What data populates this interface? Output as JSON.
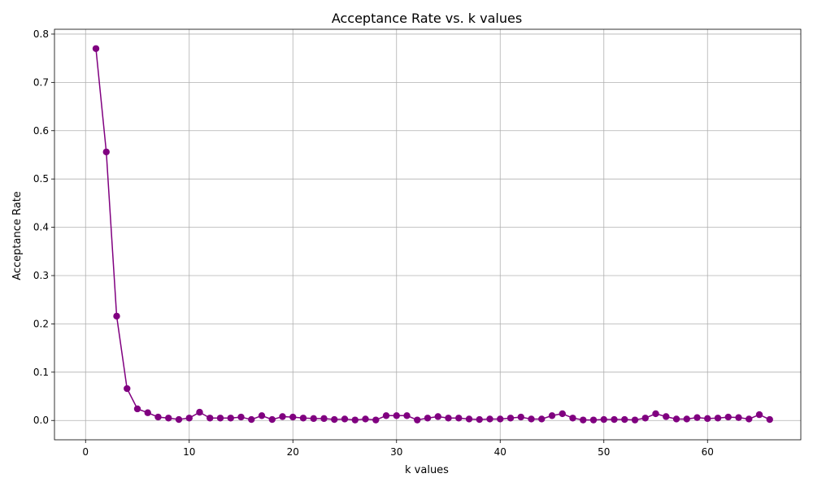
{
  "chart_data": {
    "type": "line",
    "title": "Acceptance Rate vs. k values",
    "xlabel": "k values",
    "ylabel": "Acceptance Rate",
    "xlim": [
      -3,
      69
    ],
    "ylim": [
      -0.04,
      0.81
    ],
    "xticks": [
      0,
      10,
      20,
      30,
      40,
      50,
      60
    ],
    "yticks": [
      0.0,
      0.1,
      0.2,
      0.3,
      0.4,
      0.5,
      0.6,
      0.7,
      0.8
    ],
    "ytick_labels": [
      "0.0",
      "0.1",
      "0.2",
      "0.3",
      "0.4",
      "0.5",
      "0.6",
      "0.7",
      "0.8"
    ],
    "grid": true,
    "marker": "circle",
    "series": [
      {
        "color": "#800080",
        "x": [
          1,
          2,
          3,
          4,
          5,
          6,
          7,
          8,
          9,
          10,
          11,
          12,
          13,
          14,
          15,
          16,
          17,
          18,
          19,
          20,
          21,
          22,
          23,
          24,
          25,
          26,
          27,
          28,
          29,
          30,
          31,
          32,
          33,
          34,
          35,
          36,
          37,
          38,
          39,
          40,
          41,
          42,
          43,
          44,
          45,
          46,
          47,
          48,
          49,
          50,
          51,
          52,
          53,
          54,
          55,
          56,
          57,
          58,
          59,
          60,
          61,
          62,
          63,
          64,
          65,
          66
        ],
        "y": [
          0.77,
          0.556,
          0.216,
          0.066,
          0.024,
          0.016,
          0.007,
          0.005,
          0.002,
          0.005,
          0.017,
          0.005,
          0.005,
          0.005,
          0.007,
          0.002,
          0.01,
          0.002,
          0.008,
          0.007,
          0.005,
          0.004,
          0.004,
          0.002,
          0.003,
          0.001,
          0.003,
          0.001,
          0.01,
          0.01,
          0.01,
          0.001,
          0.005,
          0.008,
          0.005,
          0.005,
          0.003,
          0.002,
          0.003,
          0.003,
          0.005,
          0.007,
          0.003,
          0.003,
          0.01,
          0.014,
          0.005,
          0.001,
          0.001,
          0.002,
          0.002,
          0.002,
          0.001,
          0.005,
          0.014,
          0.008,
          0.003,
          0.003,
          0.006,
          0.004,
          0.005,
          0.007,
          0.006,
          0.003,
          0.012,
          0.002
        ]
      }
    ]
  }
}
